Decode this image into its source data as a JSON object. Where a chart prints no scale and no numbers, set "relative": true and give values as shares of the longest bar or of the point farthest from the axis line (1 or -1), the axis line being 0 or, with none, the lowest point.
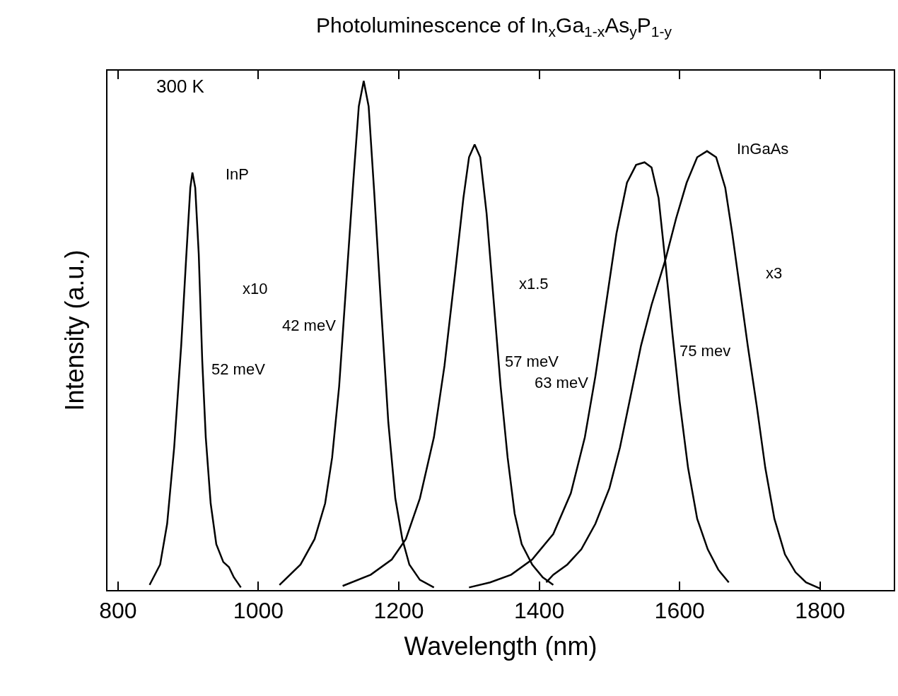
{
  "chart_data": {
    "type": "line",
    "title": "Photoluminescence of In$_{x}$Ga$_{1-x}$As$_{y}$P$_{1-y}$",
    "xlabel": "Wavelength (nm)",
    "ylabel": "Intensity (a.u.)",
    "relative": true,
    "xlim": [
      785,
      1905
    ],
    "xticks": [
      800,
      1000,
      1200,
      1400,
      1600,
      1800
    ],
    "marker": "none",
    "line_style": "solid",
    "series": [
      {
        "color": "#000000",
        "x": [
          845,
          860,
          870,
          880,
          890,
          897,
          903,
          906,
          910,
          915,
          920,
          925,
          932,
          940,
          950,
          958,
          965,
          975
        ],
        "values": [
          0.01,
          0.05,
          0.13,
          0.28,
          0.48,
          0.65,
          0.79,
          0.82,
          0.79,
          0.66,
          0.45,
          0.3,
          0.17,
          0.09,
          0.055,
          0.045,
          0.025,
          0.005
        ]
      },
      {
        "color": "#000000",
        "x": [
          1030,
          1060,
          1080,
          1095,
          1105,
          1115,
          1125,
          1135,
          1143,
          1150,
          1157,
          1165,
          1175,
          1185,
          1195,
          1205,
          1215,
          1230,
          1250
        ],
        "values": [
          0.01,
          0.05,
          0.1,
          0.17,
          0.26,
          0.4,
          0.6,
          0.8,
          0.95,
          1.0,
          0.95,
          0.78,
          0.55,
          0.33,
          0.18,
          0.1,
          0.05,
          0.02,
          0.005
        ]
      },
      {
        "color": "#000000",
        "x": [
          1120,
          1160,
          1190,
          1210,
          1230,
          1250,
          1265,
          1280,
          1292,
          1300,
          1308,
          1316,
          1325,
          1335,
          1345,
          1355,
          1365,
          1375,
          1390,
          1405,
          1420
        ],
        "values": [
          0.008,
          0.03,
          0.06,
          0.1,
          0.18,
          0.3,
          0.44,
          0.62,
          0.77,
          0.85,
          0.875,
          0.85,
          0.74,
          0.57,
          0.4,
          0.26,
          0.15,
          0.09,
          0.05,
          0.025,
          0.01
        ]
      },
      {
        "color": "#000000",
        "x": [
          1300,
          1330,
          1360,
          1390,
          1420,
          1445,
          1465,
          1480,
          1495,
          1510,
          1525,
          1538,
          1550,
          1560,
          1570,
          1580,
          1590,
          1600,
          1612,
          1625,
          1640,
          1655,
          1670
        ],
        "values": [
          0.005,
          0.015,
          0.03,
          0.06,
          0.11,
          0.19,
          0.3,
          0.42,
          0.56,
          0.7,
          0.8,
          0.835,
          0.84,
          0.83,
          0.77,
          0.64,
          0.5,
          0.37,
          0.24,
          0.14,
          0.08,
          0.04,
          0.015
        ]
      },
      {
        "color": "#000000",
        "x": [
          1410,
          1420,
          1440,
          1460,
          1480,
          1500,
          1515,
          1530,
          1545,
          1560,
          1580,
          1595,
          1610,
          1625,
          1639,
          1652,
          1665,
          1675,
          1685,
          1697,
          1710,
          1722,
          1735,
          1750,
          1765,
          1780,
          1800
        ],
        "values": [
          0.015,
          0.03,
          0.05,
          0.08,
          0.13,
          0.2,
          0.28,
          0.38,
          0.48,
          0.56,
          0.65,
          0.73,
          0.8,
          0.85,
          0.862,
          0.85,
          0.79,
          0.7,
          0.6,
          0.48,
          0.36,
          0.24,
          0.14,
          0.07,
          0.035,
          0.015,
          0.003
        ]
      }
    ],
    "annotations": [
      "300 K",
      "InP",
      "x10",
      "52 meV",
      "42 meV",
      "57 meV",
      "x1.5",
      "63 meV",
      "75 mev",
      "InGaAs",
      "x3"
    ]
  }
}
